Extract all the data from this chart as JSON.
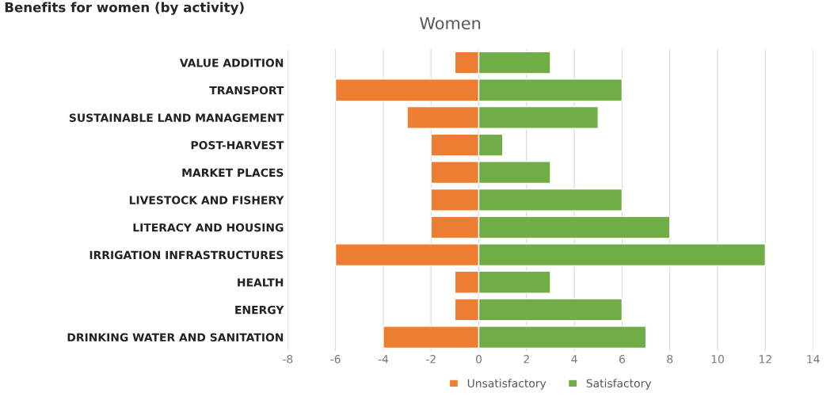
{
  "chart_data": {
    "type": "bar",
    "orientation": "horizontal",
    "stacked": true,
    "title": "Benefits for women (by activity)",
    "subtitle": "Women",
    "categories": [
      "VALUE ADDITION",
      "TRANSPORT",
      "SUSTAINABLE LAND MANAGEMENT",
      "POST-HARVEST",
      "MARKET PLACES",
      "LIVESTOCK AND FISHERY",
      "LITERACY AND HOUSING",
      "IRRIGATION INFRASTRUCTURES",
      "HEALTH",
      "ENERGY",
      "DRINKING WATER AND SANITATION"
    ],
    "series": [
      {
        "name": "Unsatisfactory",
        "color": "#ed7d31",
        "values": [
          -1,
          -6,
          -3,
          -2,
          -2,
          -2,
          -2,
          -6,
          -1,
          -1,
          -4
        ]
      },
      {
        "name": "Satisfactory",
        "color": "#70ad47",
        "values": [
          3,
          6,
          5,
          1,
          3,
          6,
          8,
          12,
          3,
          6,
          7
        ]
      }
    ],
    "xlim": [
      -8,
      14
    ],
    "xticks": [
      -8,
      -6,
      -4,
      -2,
      0,
      2,
      4,
      6,
      8,
      10,
      12,
      14
    ],
    "grid": "x",
    "legend": "bottom"
  }
}
